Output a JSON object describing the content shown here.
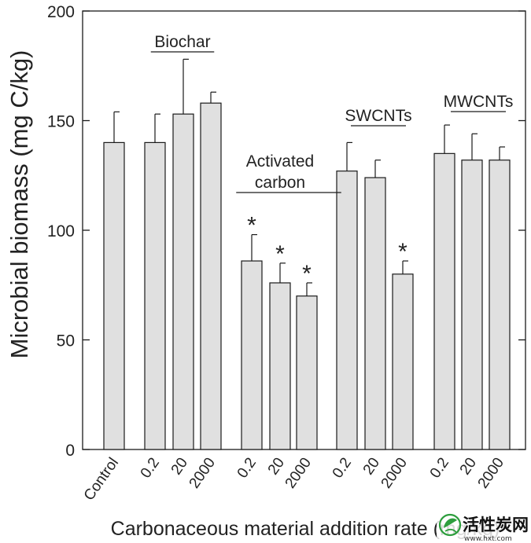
{
  "chart_data": {
    "type": "bar",
    "ylabel": "Microbial biomass (mg C/kg)",
    "xlabel": "Carbonaceous material addition rate (mg/kg)",
    "ylim": [
      0,
      200
    ],
    "yticks": [
      0,
      50,
      100,
      150,
      200
    ],
    "grid": false,
    "significance_marker": "*",
    "bars": [
      {
        "group": "Control",
        "category": "Control",
        "value": 140,
        "error": 14,
        "significant": false
      },
      {
        "group": "Biochar",
        "category": "0.2",
        "value": 140,
        "error": 13,
        "significant": false
      },
      {
        "group": "Biochar",
        "category": "20",
        "value": 153,
        "error": 25,
        "significant": false
      },
      {
        "group": "Biochar",
        "category": "2000",
        "value": 158,
        "error": 5,
        "significant": false
      },
      {
        "group": "Activated carbon",
        "category": "0.2",
        "value": 86,
        "error": 12,
        "significant": true
      },
      {
        "group": "Activated carbon",
        "category": "20",
        "value": 76,
        "error": 9,
        "significant": true
      },
      {
        "group": "Activated carbon",
        "category": "2000",
        "value": 70,
        "error": 6,
        "significant": true
      },
      {
        "group": "SWCNTs",
        "category": "0.2",
        "value": 127,
        "error": 13,
        "significant": false
      },
      {
        "group": "SWCNTs",
        "category": "20",
        "value": 124,
        "error": 8,
        "significant": false
      },
      {
        "group": "SWCNTs",
        "category": "2000",
        "value": 80,
        "error": 6,
        "significant": true
      },
      {
        "group": "MWCNTs",
        "category": "0.2",
        "value": 135,
        "error": 13,
        "significant": false
      },
      {
        "group": "MWCNTs",
        "category": "20",
        "value": 132,
        "error": 12,
        "significant": false
      },
      {
        "group": "MWCNTs",
        "category": "2000",
        "value": 132,
        "error": 6,
        "significant": false
      }
    ],
    "group_labels": [
      {
        "group": "Biochar",
        "lines": [
          "Biochar"
        ]
      },
      {
        "group": "Activated carbon",
        "lines": [
          "Activated",
          "carbon"
        ]
      },
      {
        "group": "SWCNTs",
        "lines": [
          "SWCNTs"
        ]
      },
      {
        "group": "MWCNTs",
        "lines": [
          "MWCNTs"
        ]
      }
    ],
    "colors": {
      "bar_fill": "#e0e0e0",
      "bar_stroke": "#1a1a1a",
      "axis": "#1a1a1a"
    }
  },
  "watermark": {
    "text": "活性炭网",
    "url": "www.hxt.com",
    "icon": "leaf-logo-icon",
    "colors": {
      "text": "#111111",
      "icon": "#2e9e3e"
    }
  }
}
